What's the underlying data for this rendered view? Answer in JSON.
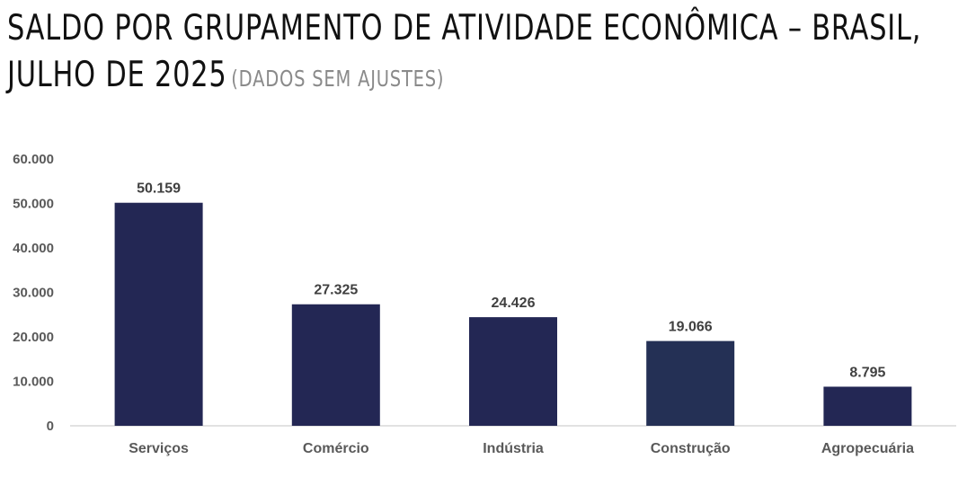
{
  "header": {
    "title_line1": "SALDO POR GRUPAMENTO DE ATIVIDADE ECONÔMICA – BRASIL,",
    "title_line2": "JULHO DE 2025",
    "subtitle": "(DADOS SEM AJUSTES)"
  },
  "chart_data": {
    "type": "bar",
    "title": "SALDO POR GRUPAMENTO DE ATIVIDADE ECONÔMICA – BRASIL, JULHO DE 2025",
    "subtitle": "(DADOS SEM AJUSTES)",
    "categories": [
      "Serviços",
      "Comércio",
      "Indústria",
      "Construção",
      "Agropecuária"
    ],
    "values": [
      50159,
      27325,
      24426,
      19066,
      8795
    ],
    "data_labels": [
      "50.159",
      "27.325",
      "24.426",
      "19.066",
      "8.795"
    ],
    "y_ticks": [
      0,
      10000,
      20000,
      30000,
      40000,
      50000,
      60000
    ],
    "y_tick_labels": [
      "0",
      "10.000",
      "20.000",
      "30.000",
      "40.000",
      "50.000",
      "60.000"
    ],
    "ylim": [
      0,
      60000
    ],
    "xlabel": "",
    "ylabel": "",
    "grid": false,
    "legend": "none",
    "colors": {
      "bars": [
        "#232754",
        "#232754",
        "#232754",
        "#243055",
        "#232754"
      ],
      "axis_line": "#d9d9d9"
    }
  }
}
